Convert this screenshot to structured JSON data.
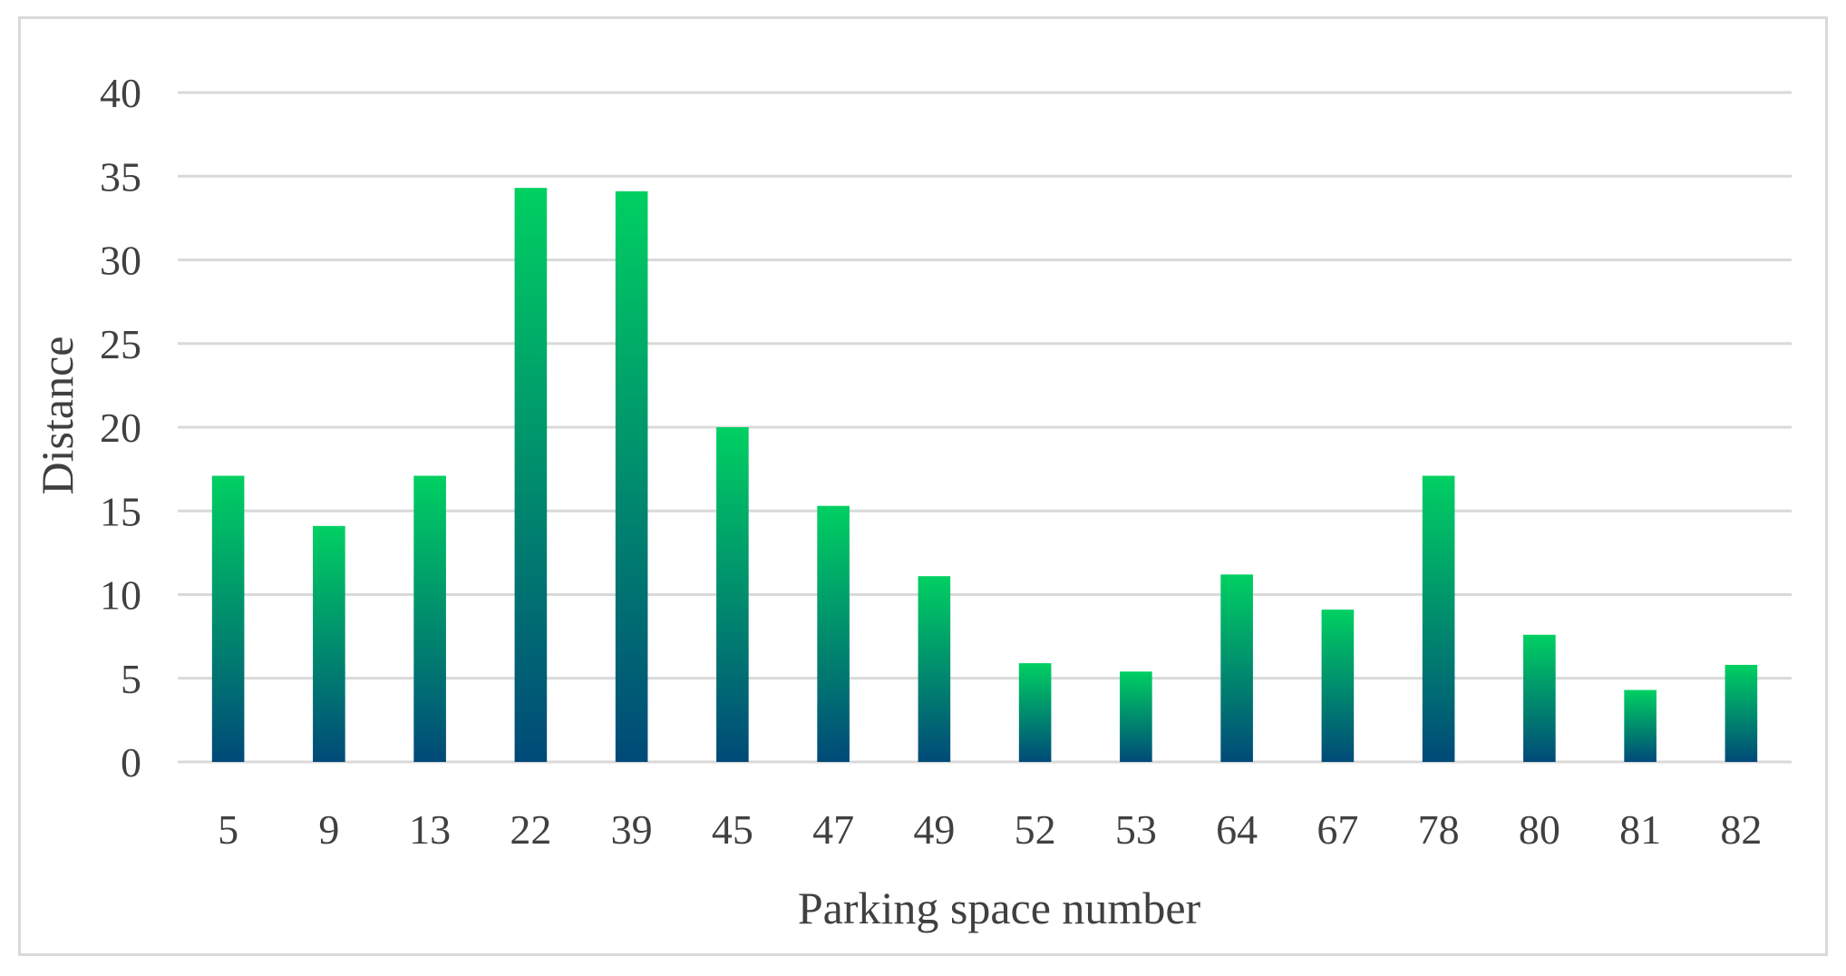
{
  "chart_data": {
    "type": "bar",
    "title": "",
    "xlabel": "Parking space number",
    "ylabel": "Distance",
    "categories": [
      "5",
      "9",
      "13",
      "22",
      "39",
      "45",
      "47",
      "49",
      "52",
      "53",
      "64",
      "67",
      "78",
      "80",
      "81",
      "82"
    ],
    "series": [
      {
        "values": [
          17.1,
          14.1,
          17.1,
          34.3,
          34.1,
          20.0,
          15.3,
          11.1,
          5.9,
          5.4,
          11.2,
          9.1,
          17.1,
          7.6,
          4.3,
          5.8
        ]
      }
    ],
    "ylim": [
      0,
      40
    ],
    "yticks": [
      0,
      5,
      10,
      15,
      20,
      25,
      30,
      35,
      40
    ],
    "grid": true,
    "legend": "none",
    "colors": {
      "bar_top": "#00d062",
      "bar_bottom": "#004a78",
      "grid": "#d9d9d9",
      "text": "#404040"
    }
  }
}
